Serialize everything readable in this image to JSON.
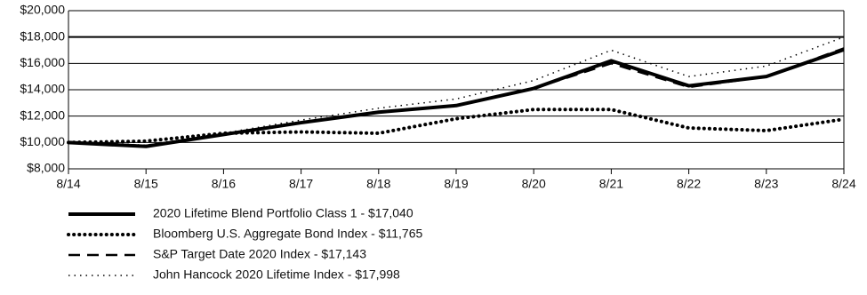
{
  "chart_data": {
    "type": "line",
    "categories": [
      "8/14",
      "8/15",
      "8/16",
      "8/17",
      "8/18",
      "8/19",
      "8/20",
      "8/21",
      "8/22",
      "8/23",
      "8/24"
    ],
    "series": [
      {
        "name": "2020 Lifetime Blend Portfolio Class 1 - $17,040",
        "color": "#000000",
        "line_style": "solid",
        "values": [
          10000,
          9700,
          10600,
          11500,
          12300,
          12800,
          14100,
          16200,
          14300,
          15000,
          17040
        ]
      },
      {
        "name": "Bloomberg U.S. Aggregate Bond Index - $11,765",
        "color": "#000000",
        "line_style": "dotted",
        "values": [
          10000,
          10100,
          10700,
          10800,
          10700,
          11800,
          12500,
          12500,
          11100,
          10900,
          11765
        ]
      },
      {
        "name": "S&P Target Date 2020 Index - $17,143",
        "color": "#000000",
        "line_style": "dashed",
        "values": [
          10000,
          9750,
          10600,
          11500,
          12300,
          12800,
          14100,
          16000,
          14200,
          15000,
          17143
        ]
      },
      {
        "name": "John Hancock 2020 Lifetime Index - $17,998",
        "color": "#000000",
        "line_style": "thin-dotted",
        "values": [
          10000,
          9800,
          10700,
          11700,
          12600,
          13300,
          14700,
          17000,
          15000,
          15800,
          17998
        ]
      }
    ],
    "ylim": [
      8000,
      20000
    ],
    "yticks": [
      {
        "value": 8000,
        "label": "$8,000"
      },
      {
        "value": 10000,
        "label": "$10,000"
      },
      {
        "value": 12000,
        "label": "$12,000"
      },
      {
        "value": 14000,
        "label": "$14,000"
      },
      {
        "value": 16000,
        "label": "$16,000"
      },
      {
        "value": 18000,
        "label": "$18,000"
      },
      {
        "value": 20000,
        "label": "$20,000"
      }
    ],
    "grid": true
  }
}
